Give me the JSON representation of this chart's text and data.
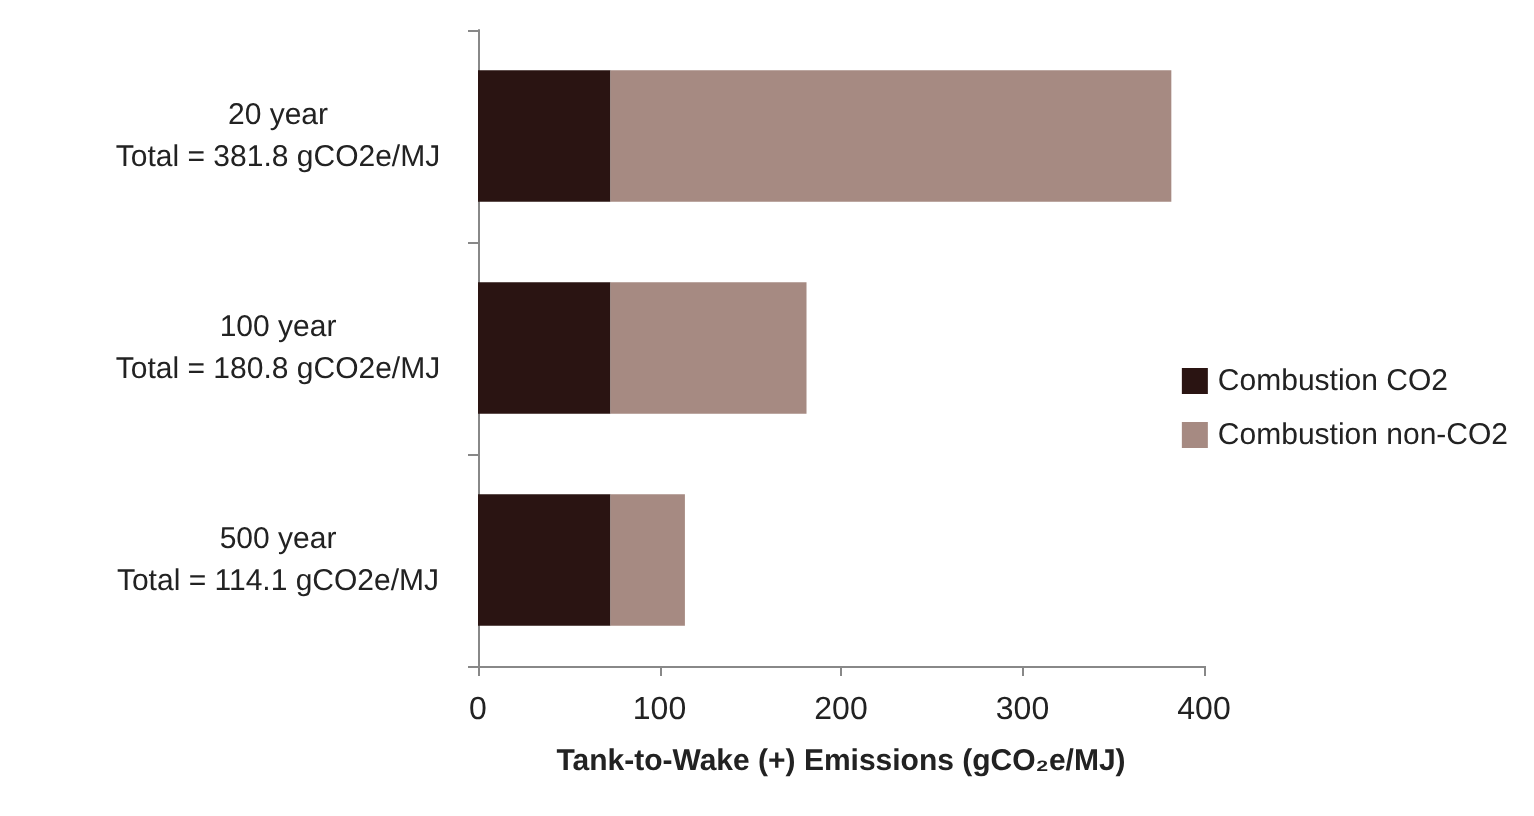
{
  "chart_data": {
    "type": "bar",
    "orientation": "horizontal",
    "stacked": true,
    "categories": [
      "20 year\nTotal = 381.8 gCO2e/MJ",
      "100 year\nTotal = 180.8 gCO2e/MJ",
      "500 year\nTotal = 114.1 gCO2e/MJ"
    ],
    "series": [
      {
        "name": "Combustion CO2",
        "color": "#2a1412",
        "values": [
          73,
          73,
          73
        ]
      },
      {
        "name": "Combustion non-CO2",
        "color": "#a68a82",
        "values": [
          309,
          108,
          41
        ]
      }
    ],
    "xlim": [
      0,
      400
    ],
    "xticks": [
      0,
      100,
      200,
      300,
      400
    ],
    "xlabel": "Tank-to-Wake (+) Emissions (gCO₂e/MJ)",
    "grid": false,
    "legend": "right"
  }
}
